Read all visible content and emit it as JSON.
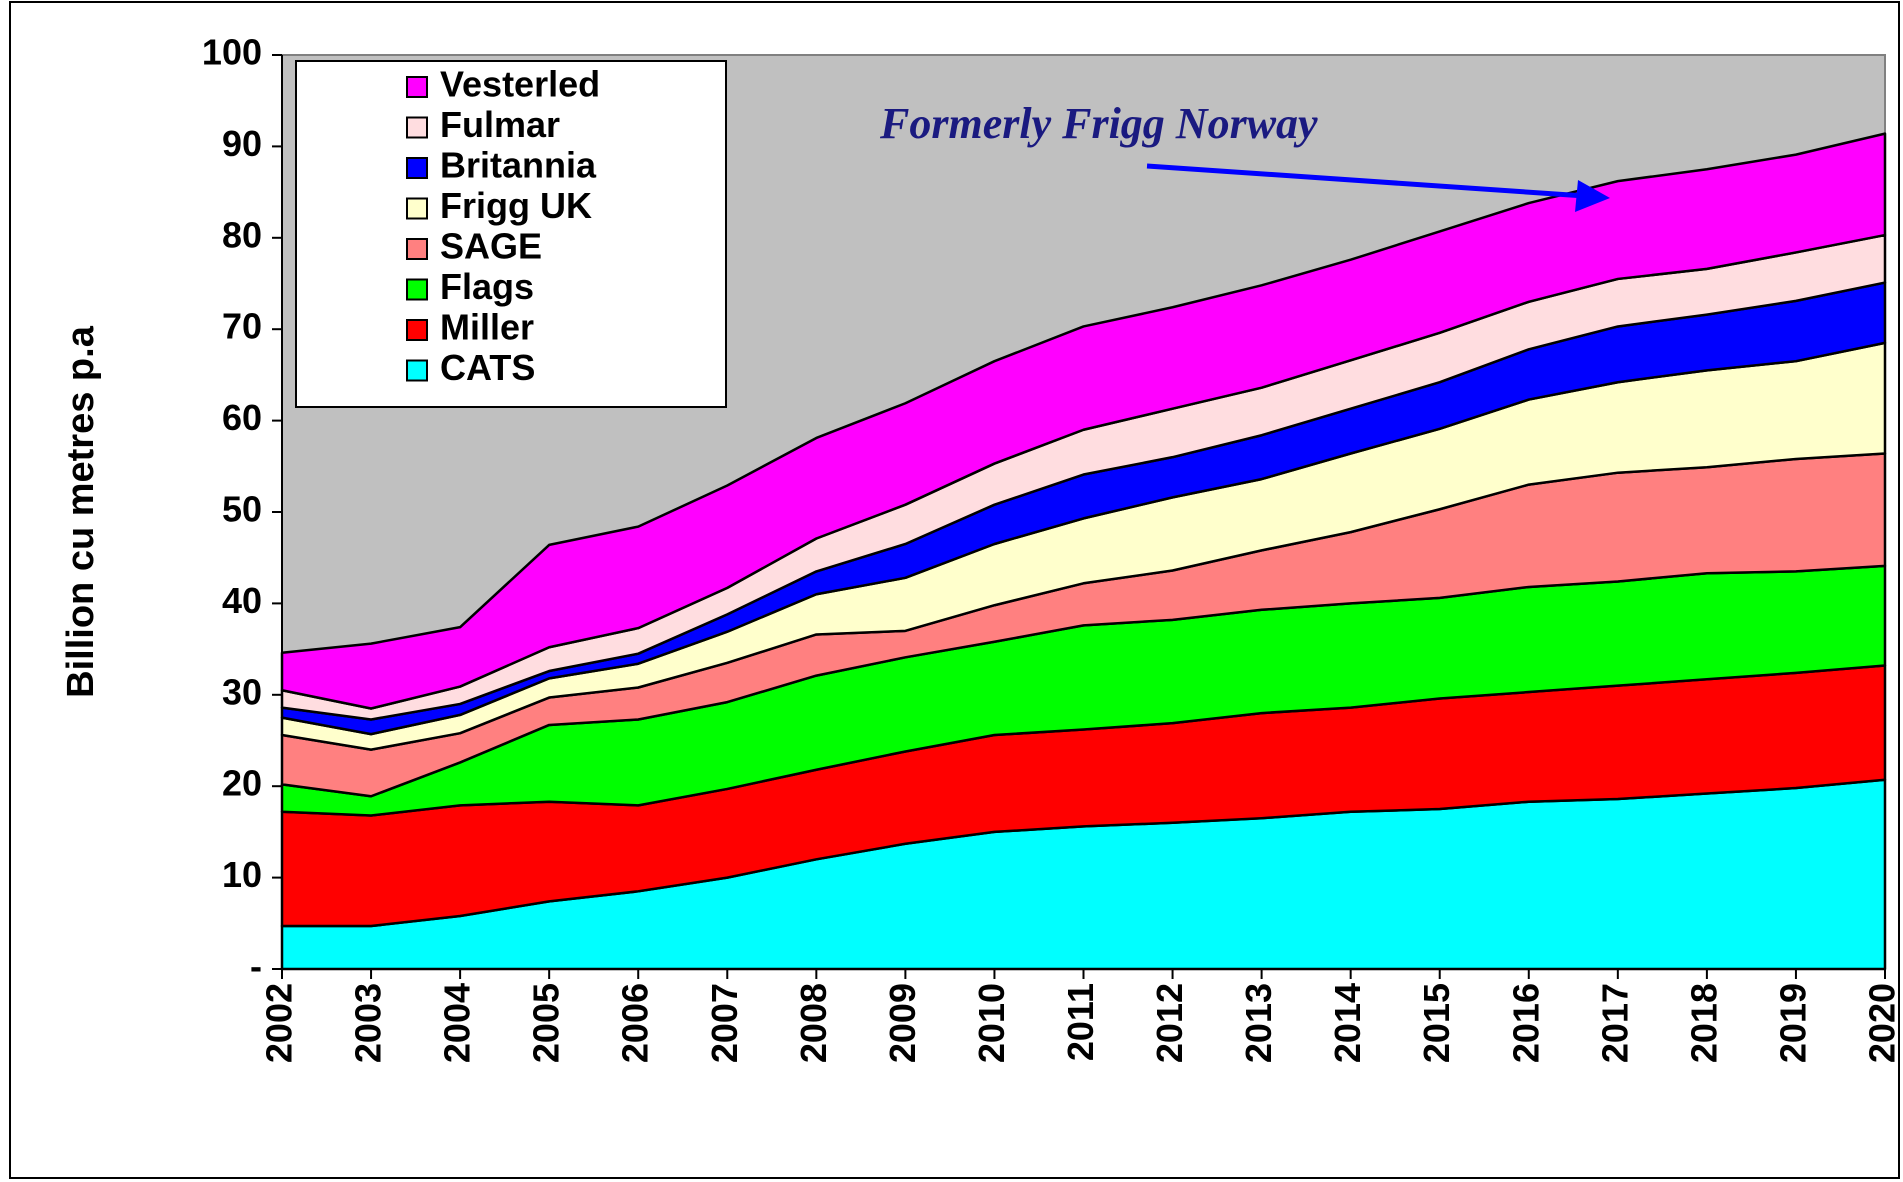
{
  "chart_data": {
    "type": "stacked_area",
    "y_label": "Billion cu metres p.a",
    "annotation": "Formerly Frigg Norway",
    "categories": [
      "2002",
      "2003",
      "2004",
      "2005",
      "2006",
      "2007",
      "2008",
      "2009",
      "2010",
      "2011",
      "2012",
      "2013",
      "2014",
      "2015",
      "2016",
      "2017",
      "2018",
      "2019",
      "2020"
    ],
    "ylim": [
      0,
      100
    ],
    "yticks": [
      {
        "value": 0,
        "label": "-"
      },
      10,
      20,
      30,
      40,
      50,
      60,
      70,
      80,
      90,
      100
    ],
    "grid": false,
    "legend": "top-left",
    "background": "#c0c0c0",
    "series": [
      {
        "name": "CATS",
        "color": "#00ffff",
        "values": [
          4.7,
          4.7,
          5.8,
          7.4,
          8.5,
          10,
          12,
          13.7,
          15,
          15.6,
          16,
          16.5,
          17.2,
          17.5,
          18.3,
          18.6,
          19.2,
          19.8,
          20.7
        ]
      },
      {
        "name": "Miller",
        "color": "#ff0000",
        "values": [
          12.5,
          12.1,
          12.1,
          10.9,
          9.4,
          9.7,
          9.8,
          10.1,
          10.6,
          10.6,
          10.9,
          11.5,
          11.4,
          12.1,
          12.0,
          12.4,
          12.5,
          12.6,
          12.5
        ]
      },
      {
        "name": "Flags",
        "color": "#00ff00",
        "values": [
          3.0,
          2.1,
          4.7,
          8.4,
          9.4,
          9.5,
          10.3,
          10.3,
          10.2,
          11.4,
          11.3,
          11.3,
          11.4,
          11.0,
          11.5,
          11.4,
          11.6,
          11.1,
          10.9
        ]
      },
      {
        "name": "SAGE",
        "color": "#ff8080",
        "values": [
          5.4,
          5.1,
          3.2,
          3.0,
          3.5,
          4.3,
          4.5,
          2.9,
          4.0,
          4.6,
          5.4,
          6.5,
          7.8,
          9.7,
          11.2,
          11.9,
          11.6,
          12.3,
          12.3
        ]
      },
      {
        "name": "Frigg UK",
        "color": "#ffffcc",
        "values": [
          1.9,
          1.7,
          2.0,
          2.1,
          2.6,
          3.4,
          4.4,
          5.8,
          6.7,
          7.1,
          8.0,
          7.8,
          8.6,
          8.8,
          9.3,
          9.9,
          10.6,
          10.7,
          12.1
        ]
      },
      {
        "name": "Britannia",
        "color": "#0000ff",
        "values": [
          1.1,
          1.6,
          1.2,
          0.8,
          1.1,
          1.9,
          2.5,
          3.7,
          4.3,
          4.8,
          4.4,
          4.8,
          4.9,
          5.1,
          5.5,
          6.1,
          6.1,
          6.6,
          6.6
        ]
      },
      {
        "name": "Fulmar",
        "color": "#ffdde0",
        "values": [
          1.9,
          1.2,
          1.9,
          2.6,
          2.8,
          2.9,
          3.6,
          4.3,
          4.5,
          4.9,
          5.3,
          5.2,
          5.3,
          5.4,
          5.2,
          5.2,
          5.0,
          5.3,
          5.2
        ]
      },
      {
        "name": "Vesterled",
        "color": "#ff00ff",
        "values": [
          4.1,
          7.1,
          6.5,
          11.2,
          11.1,
          11.2,
          11.0,
          11.1,
          11.2,
          11.3,
          11.1,
          11.2,
          11.0,
          11.1,
          10.8,
          10.7,
          10.9,
          10.7,
          11.1
        ]
      }
    ]
  }
}
